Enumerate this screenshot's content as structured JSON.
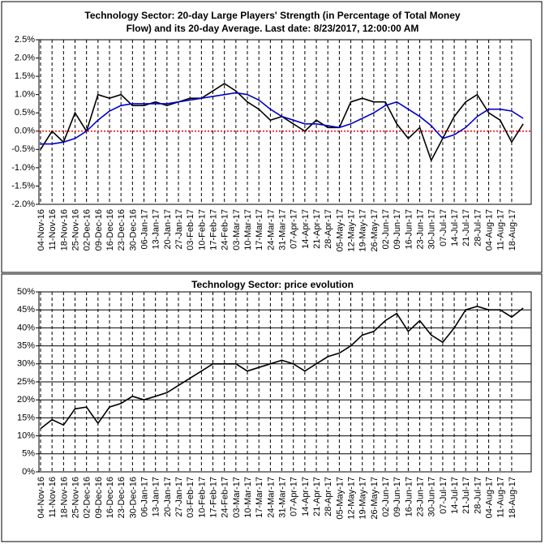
{
  "chart_data": [
    {
      "type": "line",
      "title": [
        "Technology Sector: 20-day Large Players' Strength (in Percentage of Total Money",
        "Flow) and its 20-day Average. Last date: 8/23/2017, 12:00:00 AM"
      ],
      "categories": [
        "04-Nov-16",
        "11-Nov-16",
        "18-Nov-16",
        "25-Nov-16",
        "02-Dec-16",
        "09-Dec-16",
        "16-Dec-16",
        "23-Dec-16",
        "30-Dec-16",
        "06-Jan-17",
        "13-Jan-17",
        "20-Jan-17",
        "27-Jan-17",
        "03-Feb-17",
        "10-Feb-17",
        "17-Feb-17",
        "24-Feb-17",
        "03-Mar-17",
        "10-Mar-17",
        "17-Mar-17",
        "24-Mar-17",
        "31-Mar-17",
        "07-Apr-17",
        "14-Apr-17",
        "21-Apr-17",
        "28-Apr-17",
        "05-May-17",
        "12-May-17",
        "19-May-17",
        "26-May-17",
        "02-Jun-17",
        "09-Jun-17",
        "16-Jun-17",
        "23-Jun-17",
        "30-Jun-17",
        "07-Jul-17",
        "14-Jul-17",
        "21-Jul-17",
        "28-Jul-17",
        "04-Aug-17",
        "11-Aug-17",
        "18-Aug-17",
        null
      ],
      "series": [
        {
          "color": "#000000",
          "values": [
            -0.5,
            0.0,
            -0.3,
            0.5,
            0.0,
            1.0,
            0.9,
            1.0,
            0.7,
            0.7,
            0.8,
            0.7,
            0.8,
            0.9,
            0.9,
            1.1,
            1.3,
            1.1,
            0.8,
            0.6,
            0.3,
            0.4,
            0.2,
            0.0,
            0.3,
            0.1,
            0.1,
            0.8,
            0.9,
            0.8,
            0.8,
            0.2,
            -0.2,
            0.1,
            -0.8,
            -0.2,
            0.4,
            0.8,
            1.0,
            0.5,
            0.3,
            -0.3,
            0.2
          ]
        },
        {
          "color": "#0000cc",
          "values": [
            -0.35,
            -0.35,
            -0.3,
            -0.2,
            0.0,
            0.3,
            0.55,
            0.7,
            0.75,
            0.75,
            0.75,
            0.75,
            0.8,
            0.85,
            0.9,
            0.95,
            1.0,
            1.05,
            1.0,
            0.85,
            0.6,
            0.4,
            0.3,
            0.2,
            0.2,
            0.15,
            0.1,
            0.2,
            0.35,
            0.5,
            0.7,
            0.8,
            0.6,
            0.4,
            0.15,
            -0.2,
            -0.1,
            0.1,
            0.4,
            0.6,
            0.6,
            0.55,
            0.35
          ]
        }
      ],
      "ylim": [
        -2.0,
        2.5
      ],
      "yticks": [
        {
          "value": -2.0,
          "label": "-2.0%"
        },
        {
          "value": -1.5,
          "label": "-1.5%"
        },
        {
          "value": -1.0,
          "label": "-1.0%"
        },
        {
          "value": -0.5,
          "label": "-0.5%"
        },
        {
          "value": 0.0,
          "label": "0.0%"
        },
        {
          "value": 0.5,
          "label": "0.5%"
        },
        {
          "value": 1.0,
          "label": "1.0%"
        },
        {
          "value": 1.5,
          "label": "1.5%"
        },
        {
          "value": 2.0,
          "label": "2.0%"
        },
        {
          "value": 2.5,
          "label": "2.5%"
        }
      ],
      "grid": "x",
      "reference_line": {
        "value": 0,
        "color": "#ff0000"
      }
    },
    {
      "type": "line",
      "title": [
        "Technology Sector: price evolution"
      ],
      "categories": [
        "04-Nov-16",
        "11-Nov-16",
        "18-Nov-16",
        "25-Nov-16",
        "02-Dec-16",
        "09-Dec-16",
        "16-Dec-16",
        "23-Dec-16",
        "30-Dec-16",
        "06-Jan-17",
        "13-Jan-17",
        "20-Jan-17",
        "27-Jan-17",
        "03-Feb-17",
        "10-Feb-17",
        "17-Feb-17",
        "24-Feb-17",
        "03-Mar-17",
        "10-Mar-17",
        "17-Mar-17",
        "24-Mar-17",
        "31-Mar-17",
        "07-Apr-17",
        "14-Apr-17",
        "21-Apr-17",
        "28-Apr-17",
        "05-May-17",
        "12-May-17",
        "19-May-17",
        "26-May-17",
        "02-Jun-17",
        "09-Jun-17",
        "16-Jun-17",
        "23-Jun-17",
        "30-Jun-17",
        "07-Jul-17",
        "14-Jul-17",
        "21-Jul-17",
        "28-Jul-17",
        "04-Aug-17",
        "11-Aug-17",
        "18-Aug-17",
        null
      ],
      "series": [
        {
          "color": "#000000",
          "values": [
            12,
            14.5,
            13,
            17.5,
            18,
            13.5,
            18,
            19,
            21,
            20,
            21,
            22,
            24,
            26,
            28,
            30,
            30,
            30,
            28,
            29,
            30,
            31,
            30,
            28,
            30,
            32,
            33,
            35,
            38,
            39,
            42,
            44,
            39,
            42,
            38,
            36,
            40,
            45,
            46,
            45,
            45,
            43,
            45.5
          ]
        }
      ],
      "ylim": [
        0,
        50
      ],
      "yticks": [
        {
          "value": 0,
          "label": "0%"
        },
        {
          "value": 5,
          "label": "5%"
        },
        {
          "value": 10,
          "label": "10%"
        },
        {
          "value": 15,
          "label": "15%"
        },
        {
          "value": 20,
          "label": "20%"
        },
        {
          "value": 25,
          "label": "25%"
        },
        {
          "value": 30,
          "label": "30%"
        },
        {
          "value": 35,
          "label": "35%"
        },
        {
          "value": 40,
          "label": "40%"
        },
        {
          "value": 45,
          "label": "45%"
        },
        {
          "value": 50,
          "label": "50%"
        }
      ],
      "grid": "both"
    }
  ]
}
